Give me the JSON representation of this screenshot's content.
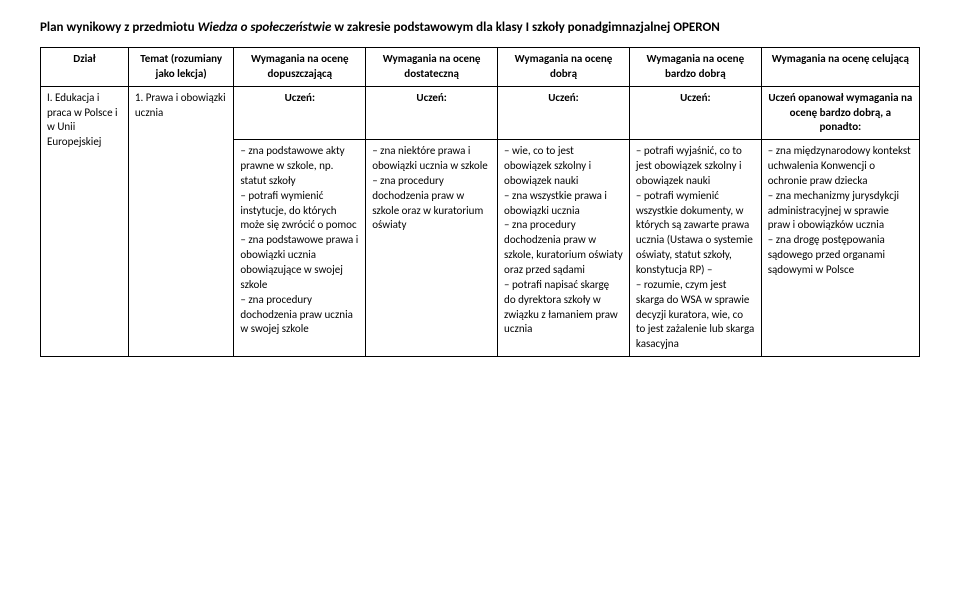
{
  "title_prefix": "Plan wynikowy z przedmiotu ",
  "title_italic": "Wiedza o społeczeństwie",
  "title_suffix": " w zakresie podstawowym dla klasy I szkoły ponadgimnazjalnej OPERON",
  "headers": {
    "dzial": "Dział",
    "temat": "Temat (rozumiany jako lekcja)",
    "dop": "Wymagania na ocenę dopuszczającą",
    "dost": "Wymagania na ocenę dostateczną",
    "dobr": "Wymagania na ocenę dobrą",
    "bdobr": "Wymagania na ocenę bardzo dobrą",
    "cel": "Wymagania na ocenę celującą"
  },
  "subhead": "Uczeń:",
  "opanowal": "Uczeń opanował wymagania na ocenę bardzo dobrą, a ponadto:",
  "row1": {
    "dzial": "I. Edukacja i praca w Polsce i w Unii Europejskiej",
    "temat": "1. Prawa i obowiązki ucznia",
    "dop": "– zna podstawowe akty prawne w szkole, np. statut szkoły\n– potrafi wymienić instytucje, do których może się zwrócić o pomoc\n– zna podstawowe prawa i obowiązki ucznia obowiązujące w swojej szkole\n– zna procedury dochodzenia praw ucznia w swojej szkole",
    "dost": "– zna niektóre prawa i obowiązki ucznia w szkole\n– zna procedury dochodzenia praw w szkole oraz w kuratorium oświaty",
    "dobr": "– wie, co to jest obowiązek szkolny i obowiązek nauki\n– zna wszystkie prawa i obowiązki ucznia\n– zna procedury dochodzenia praw w szkole, kuratorium oświaty oraz przed sądami\n– potrafi napisać skargę do dyrektora szkoły w związku z łamaniem praw ucznia",
    "bdobr": "– potrafi wyjaśnić, co to jest obowiązek szkolny i obowiązek nauki\n– potrafi wymienić wszystkie dokumenty, w których są zawarte prawa ucznia (Ustawa o systemie oświaty, statut szkoły, konstytucja RP) –\n– rozumie, czym jest skarga do WSA  w sprawie decyzji kuratora, wie, co to jest zażalenie lub skarga kasacyjna",
    "cel": "– zna międzynarodowy kontekst uchwalenia Konwencji o ochronie praw dziecka\n– zna mechanizmy jurysdykcji administracyjnej w sprawie praw i obowiązków ucznia\n– zna drogę postępowania sądowego przed organami sądowymi w Polsce"
  }
}
